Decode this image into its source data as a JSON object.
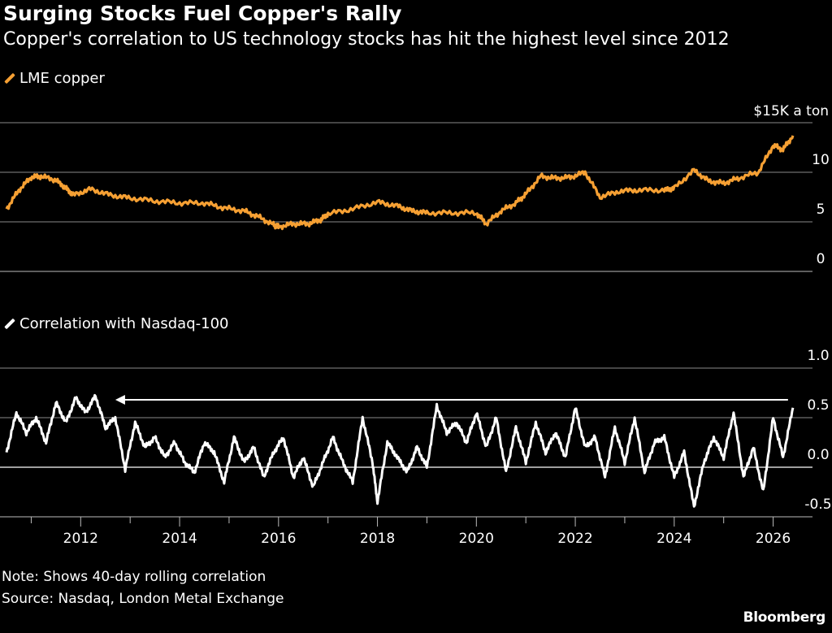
{
  "header": {
    "title": "Surging Stocks Fuel Copper's Rally",
    "subtitle": "Copper's correlation to US technology stocks has hit the highest level since 2012"
  },
  "colors": {
    "copper": "#f6a033",
    "correlation": "#ffffff",
    "background": "#000000",
    "grid": "#8a8a8a"
  },
  "chart_data": [
    {
      "type": "line",
      "legend": "LME copper",
      "unit_label": "$15K a ton",
      "ylim": [
        0,
        15
      ],
      "yticks": [
        0,
        5,
        10
      ],
      "xlim": [
        2010.5,
        2026.5
      ],
      "series": [
        {
          "name": "LME copper",
          "x": [
            2010.5,
            2010.75,
            2011.0,
            2011.2,
            2011.5,
            2011.7,
            2011.85,
            2012.2,
            2012.6,
            2013.0,
            2013.5,
            2014.0,
            2014.5,
            2014.9,
            2015.3,
            2015.6,
            2015.9,
            2016.0,
            2016.3,
            2016.6,
            2016.85,
            2017.0,
            2017.5,
            2018.0,
            2018.4,
            2018.7,
            2019.0,
            2019.5,
            2020.0,
            2020.2,
            2020.5,
            2020.8,
            2021.0,
            2021.3,
            2021.6,
            2021.9,
            2022.2,
            2022.5,
            2022.9,
            2023.3,
            2023.8,
            2024.0,
            2024.4,
            2024.7,
            2025.0,
            2025.3,
            2025.7,
            2026.0,
            2026.2,
            2026.4
          ],
          "values": [
            6.3,
            8.2,
            9.5,
            9.6,
            9.2,
            8.4,
            7.7,
            8.3,
            7.7,
            7.4,
            7.1,
            6.9,
            6.9,
            6.4,
            6.1,
            5.5,
            4.7,
            4.5,
            4.8,
            4.8,
            5.2,
            5.8,
            6.3,
            7.0,
            6.6,
            6.1,
            5.9,
            5.9,
            5.9,
            4.8,
            6.1,
            6.9,
            7.8,
            9.6,
            9.4,
            9.5,
            10.0,
            7.5,
            8.1,
            8.2,
            8.2,
            8.4,
            10.2,
            9.1,
            8.9,
            9.4,
            10.0,
            12.7,
            12.3,
            13.7
          ]
        }
      ]
    },
    {
      "type": "line",
      "legend": "Correlation with Nasdaq-100",
      "ylim": [
        -0.5,
        1.0
      ],
      "yticks": [
        1.0,
        0.5,
        0.0,
        -0.5
      ],
      "xlim": [
        2010.5,
        2026.5
      ],
      "xticks": [
        "2012",
        "2014",
        "2016",
        "2018",
        "2020",
        "2022",
        "2024",
        "2026"
      ],
      "reference_arrow": {
        "from": 2026.3,
        "to": 2012.7,
        "value": 0.68
      },
      "series": [
        {
          "name": "Correlation with Nasdaq-100",
          "x": [
            2010.5,
            2010.7,
            2010.9,
            2011.1,
            2011.3,
            2011.5,
            2011.7,
            2011.9,
            2012.1,
            2012.3,
            2012.5,
            2012.7,
            2012.9,
            2013.1,
            2013.3,
            2013.5,
            2013.7,
            2013.9,
            2014.1,
            2014.3,
            2014.5,
            2014.7,
            2014.9,
            2015.1,
            2015.3,
            2015.5,
            2015.7,
            2015.9,
            2016.1,
            2016.3,
            2016.5,
            2016.7,
            2016.9,
            2017.1,
            2017.3,
            2017.5,
            2017.7,
            2017.9,
            2018.0,
            2018.2,
            2018.4,
            2018.6,
            2018.8,
            2019.0,
            2019.2,
            2019.4,
            2019.6,
            2019.8,
            2020.0,
            2020.2,
            2020.4,
            2020.6,
            2020.8,
            2021.0,
            2021.2,
            2021.4,
            2021.6,
            2021.8,
            2022.0,
            2022.2,
            2022.4,
            2022.6,
            2022.8,
            2023.0,
            2023.2,
            2023.4,
            2023.6,
            2023.8,
            2024.0,
            2024.2,
            2024.4,
            2024.6,
            2024.8,
            2025.0,
            2025.2,
            2025.4,
            2025.6,
            2025.8,
            2026.0,
            2026.2,
            2026.4
          ],
          "values": [
            0.15,
            0.55,
            0.35,
            0.5,
            0.25,
            0.65,
            0.45,
            0.7,
            0.55,
            0.72,
            0.4,
            0.5,
            -0.02,
            0.45,
            0.2,
            0.3,
            0.1,
            0.25,
            0.05,
            -0.05,
            0.25,
            0.15,
            -0.15,
            0.3,
            0.05,
            0.2,
            -0.1,
            0.15,
            0.3,
            -0.1,
            0.1,
            -0.2,
            0.05,
            0.3,
            0.05,
            -0.15,
            0.5,
            0.05,
            -0.35,
            0.25,
            0.1,
            -0.05,
            0.2,
            0.0,
            0.62,
            0.35,
            0.45,
            0.25,
            0.55,
            0.2,
            0.5,
            -0.05,
            0.4,
            0.05,
            0.45,
            0.15,
            0.35,
            0.1,
            0.6,
            0.2,
            0.3,
            -0.1,
            0.4,
            0.05,
            0.5,
            -0.05,
            0.25,
            0.3,
            -0.1,
            0.15,
            -0.4,
            0.05,
            0.3,
            0.1,
            0.55,
            -0.1,
            0.2,
            -0.25,
            0.5,
            0.1,
            0.6
          ]
        }
      ]
    }
  ],
  "notes": {
    "note": "Note: Shows 40-day rolling correlation",
    "source": "Source: Nasdaq, London Metal Exchange",
    "brand": "Bloomberg"
  }
}
